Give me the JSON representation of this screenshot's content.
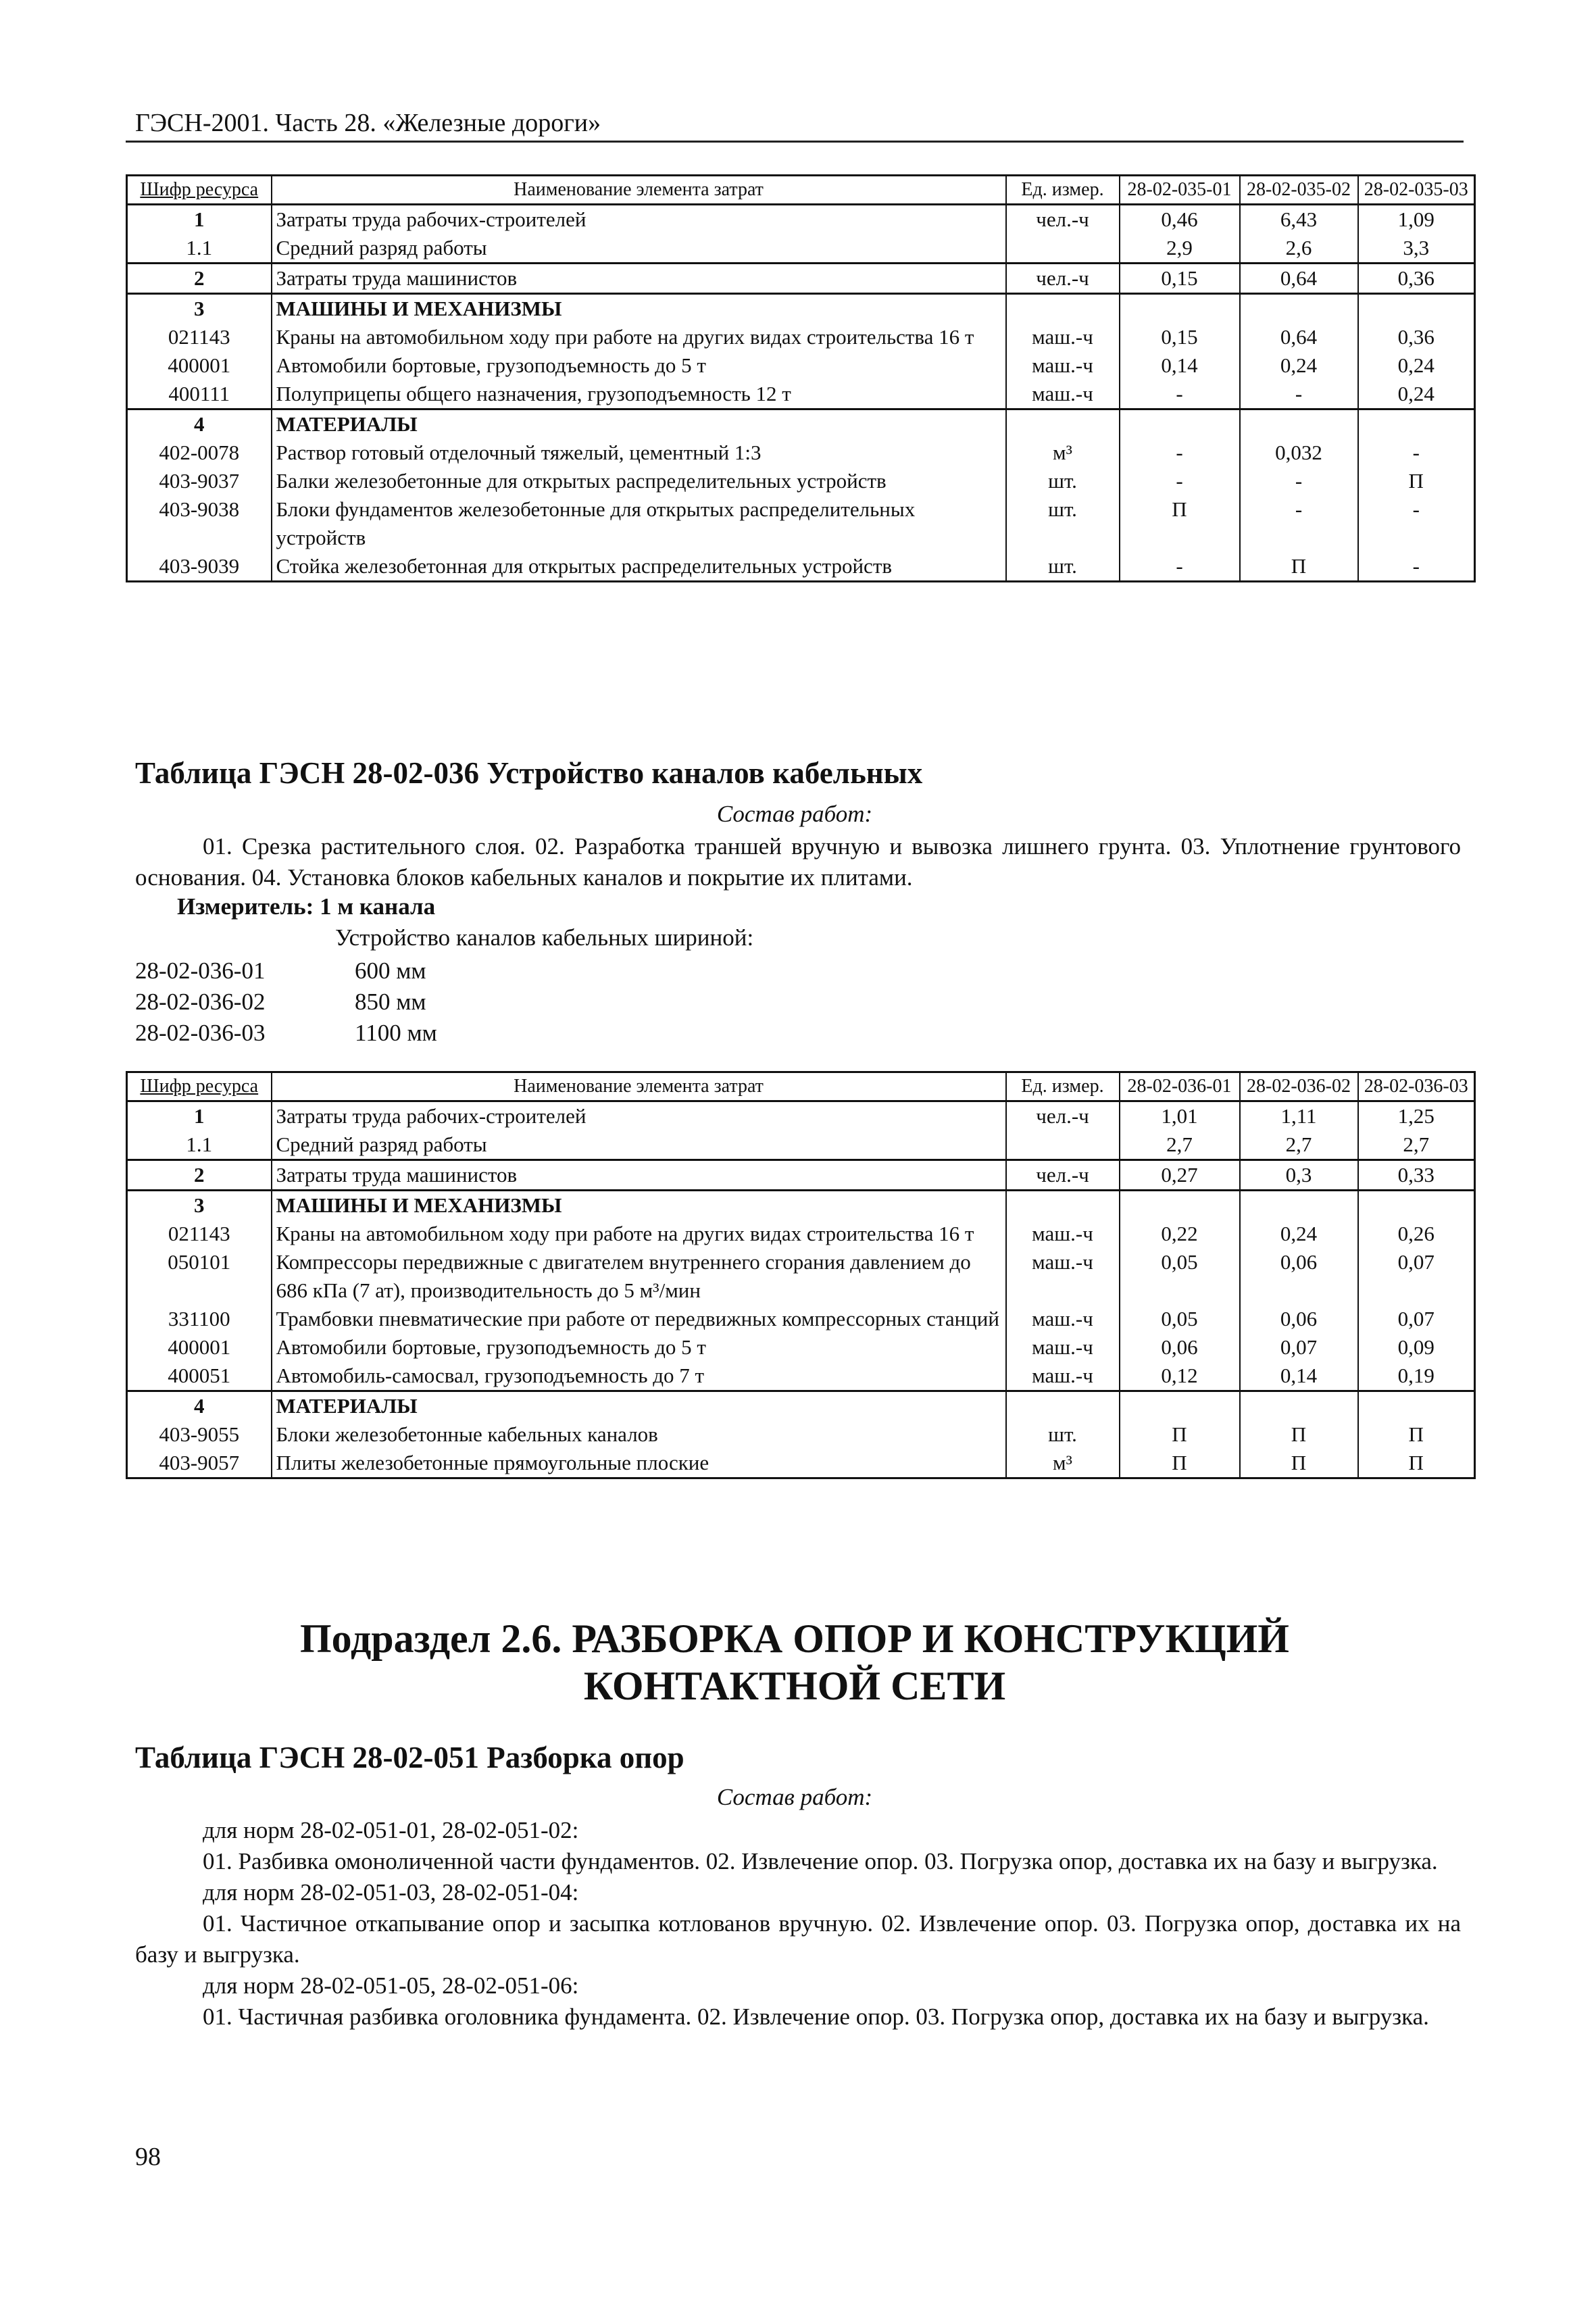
{
  "running_header": "ГЭСН-2001. Часть 28. «Железные дороги»",
  "page_number": "98",
  "table_headers": {
    "shifr": "Шифр ресурса",
    "name": "Наименование элемента затрат",
    "unit": "Ед. измер."
  },
  "table_035": {
    "columns": [
      "28-02-035-01",
      "28-02-035-02",
      "28-02-035-03"
    ],
    "groups": [
      [
        {
          "code": "1",
          "name": "Затраты труда рабочих-строителей",
          "unit": "чел.-ч",
          "values": [
            "0,46",
            "6,43",
            "1,09"
          ],
          "bold_code": true
        },
        {
          "code": "1.1",
          "name": "Средний разряд работы",
          "unit": "",
          "values": [
            "2,9",
            "2,6",
            "3,3"
          ]
        }
      ],
      [
        {
          "code": "2",
          "name": "Затраты труда машинистов",
          "unit": "чел.-ч",
          "values": [
            "0,15",
            "0,64",
            "0,36"
          ],
          "bold_code": true
        }
      ],
      [
        {
          "code": "3",
          "name": "МАШИНЫ И МЕХАНИЗМЫ",
          "unit": "",
          "values": [
            "",
            "",
            ""
          ],
          "bold_code": true,
          "bold_name": true
        },
        {
          "code": "021143",
          "name": "Краны на автомобильном ходу при работе на других видах строительства 16 т",
          "unit": "маш.-ч",
          "values": [
            "0,15",
            "0,64",
            "0,36"
          ]
        },
        {
          "code": "400001",
          "name": "Автомобили бортовые, грузоподъемность до 5 т",
          "unit": "маш.-ч",
          "values": [
            "0,14",
            "0,24",
            "0,24"
          ]
        },
        {
          "code": "400111",
          "name": "Полуприцепы общего назначения, грузоподъемность 12 т",
          "unit": "маш.-ч",
          "values": [
            "-",
            "-",
            "0,24"
          ]
        }
      ],
      [
        {
          "code": "4",
          "name": "МАТЕРИАЛЫ",
          "unit": "",
          "values": [
            "",
            "",
            ""
          ],
          "bold_code": true,
          "bold_name": true
        },
        {
          "code": "402-0078",
          "name": "Раствор готовый отделочный тяжелый, цементный 1:3",
          "unit": "м³",
          "values": [
            "-",
            "0,032",
            "-"
          ]
        },
        {
          "code": "403-9037",
          "name": "Балки железобетонные для открытых распределительных устройств",
          "unit": "шт.",
          "values": [
            "-",
            "-",
            "П"
          ]
        },
        {
          "code": "403-9038",
          "name": "Блоки фундаментов железобетонные для открытых распределительных устройств",
          "unit": "шт.",
          "values": [
            "П",
            "-",
            "-"
          ]
        },
        {
          "code": "403-9039",
          "name": "Стойка железобетонная для открытых распределительных устройств",
          "unit": "шт.",
          "values": [
            "-",
            "П",
            "-"
          ]
        }
      ]
    ]
  },
  "section_036": {
    "title": "Таблица ГЭСН 28-02-036 Устройство каналов кабельных",
    "work_label": "Состав работ:",
    "work_text": "01. Срезка растительного слоя. 02. Разработка траншей вручную и вывозка лишнего грунта. 03. Уплотнение грунтового основания. 04. Установка блоков кабельных каналов и покрытие их плитами.",
    "meter": "Измеритель: 1 м канала",
    "subtitle": "Устройство каналов кабельных шириной:",
    "norms": [
      {
        "code": "28-02-036-01",
        "value": "600 мм"
      },
      {
        "code": "28-02-036-02",
        "value": "850 мм"
      },
      {
        "code": "28-02-036-03",
        "value": "1100 мм"
      }
    ]
  },
  "table_036": {
    "columns": [
      "28-02-036-01",
      "28-02-036-02",
      "28-02-036-03"
    ],
    "groups": [
      [
        {
          "code": "1",
          "name": "Затраты труда рабочих-строителей",
          "unit": "чел.-ч",
          "values": [
            "1,01",
            "1,11",
            "1,25"
          ],
          "bold_code": true
        },
        {
          "code": "1.1",
          "name": "Средний разряд работы",
          "unit": "",
          "values": [
            "2,7",
            "2,7",
            "2,7"
          ]
        }
      ],
      [
        {
          "code": "2",
          "name": "Затраты труда машинистов",
          "unit": "чел.-ч",
          "values": [
            "0,27",
            "0,3",
            "0,33"
          ],
          "bold_code": true
        }
      ],
      [
        {
          "code": "3",
          "name": "МАШИНЫ И МЕХАНИЗМЫ",
          "unit": "",
          "values": [
            "",
            "",
            ""
          ],
          "bold_code": true,
          "bold_name": true
        },
        {
          "code": "021143",
          "name": "Краны на автомобильном ходу при работе на других видах строительства 16 т",
          "unit": "маш.-ч",
          "values": [
            "0,22",
            "0,24",
            "0,26"
          ]
        },
        {
          "code": "050101",
          "name": "Компрессоры передвижные с двигателем внутреннего сгорания давлением до 686 кПа (7 ат), производительность до 5 м³/мин",
          "unit": "маш.-ч",
          "values": [
            "0,05",
            "0,06",
            "0,07"
          ]
        },
        {
          "code": "331100",
          "name": "Трамбовки пневматические при работе от передвижных компрессорных станций",
          "unit": "маш.-ч",
          "values": [
            "0,05",
            "0,06",
            "0,07"
          ]
        },
        {
          "code": "400001",
          "name": "Автомобили бортовые, грузоподъемность до 5 т",
          "unit": "маш.-ч",
          "values": [
            "0,06",
            "0,07",
            "0,09"
          ]
        },
        {
          "code": "400051",
          "name": "Автомобиль-самосвал, грузоподъемность до 7 т",
          "unit": "маш.-ч",
          "values": [
            "0,12",
            "0,14",
            "0,19"
          ]
        }
      ],
      [
        {
          "code": "4",
          "name": "МАТЕРИАЛЫ",
          "unit": "",
          "values": [
            "",
            "",
            ""
          ],
          "bold_code": true,
          "bold_name": true
        },
        {
          "code": "403-9055",
          "name": "Блоки железобетонные кабельных каналов",
          "unit": "шт.",
          "values": [
            "П",
            "П",
            "П"
          ]
        },
        {
          "code": "403-9057",
          "name": "Плиты железобетонные прямоугольные плоские",
          "unit": "м³",
          "values": [
            "П",
            "П",
            "П"
          ]
        }
      ]
    ]
  },
  "subsection": {
    "title": "Подраздел 2.6. РАЗБОРКА ОПОР И КОНСТРУКЦИЙ КОНТАКТНОЙ СЕТИ"
  },
  "section_051": {
    "title": "Таблица ГЭСН 28-02-051 Разборка опор",
    "work_label": "Состав работ:",
    "items": [
      {
        "for": "для норм 28-02-051-01, 28-02-051-02:",
        "text": "01. Разбивка омоноличенной части фундаментов. 02. Извлечение опор. 03. Погрузка опор, доставка их на базу и выгрузка."
      },
      {
        "for": "для норм 28-02-051-03, 28-02-051-04:",
        "text": "01. Частичное откапывание опор и засыпка котлованов вручную. 02. Извлечение опор. 03. Погрузка опор, доставка их на базу и выгрузка."
      },
      {
        "for": "для норм 28-02-051-05, 28-02-051-06:",
        "text": "01. Частичная разбивка оголовника фундамента. 02. Извлечение опор. 03. Погрузка опор, доставка их на базу и выгрузка."
      }
    ]
  }
}
